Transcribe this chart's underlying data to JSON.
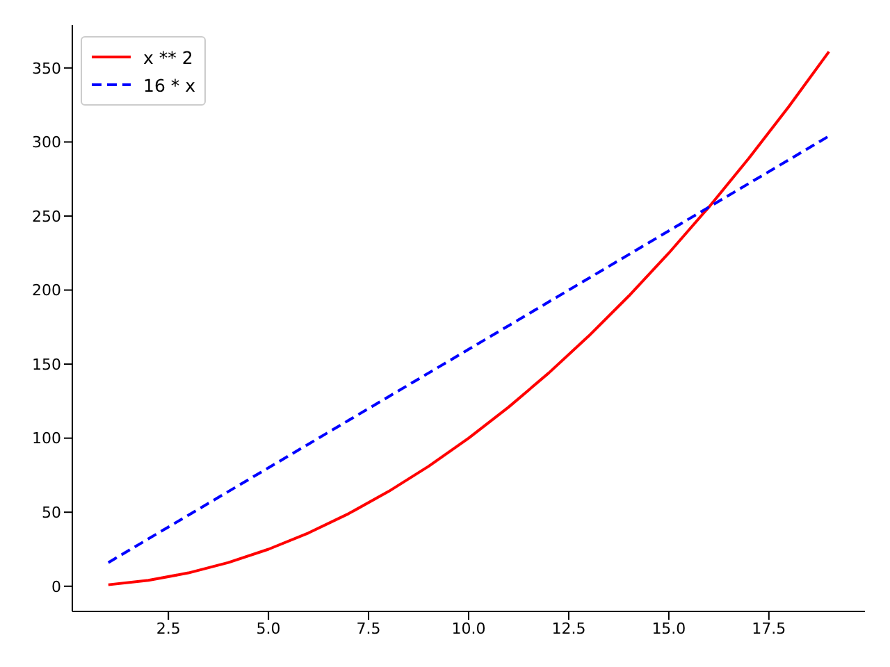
{
  "chart_data": {
    "type": "line",
    "x": [
      1,
      2,
      3,
      4,
      5,
      6,
      7,
      8,
      9,
      10,
      11,
      12,
      13,
      14,
      15,
      16,
      17,
      18,
      19
    ],
    "series": [
      {
        "name": "x ** 2",
        "color": "#ff0000",
        "line_style": "solid",
        "values": [
          1,
          4,
          9,
          16,
          25,
          36,
          49,
          64,
          81,
          100,
          121,
          144,
          169,
          196,
          225,
          256,
          289,
          324,
          361
        ]
      },
      {
        "name": "16 * x",
        "color": "#0000ff",
        "line_style": "dashed",
        "values": [
          16,
          32,
          48,
          64,
          80,
          96,
          112,
          128,
          144,
          160,
          176,
          192,
          208,
          224,
          240,
          256,
          272,
          288,
          304
        ]
      }
    ],
    "xlim": [
      0.1,
      19.9
    ],
    "xticks": [
      {
        "value": 2.5,
        "label": "2.5"
      },
      {
        "value": 5,
        "label": "5.0"
      },
      {
        "value": 7.5,
        "label": "7.5"
      },
      {
        "value": 10,
        "label": "10.0"
      },
      {
        "value": 12.5,
        "label": "12.5"
      },
      {
        "value": 15,
        "label": "15.0"
      },
      {
        "value": 17.5,
        "label": "17.5"
      }
    ],
    "ylim": [
      -17,
      379
    ],
    "yticks": [
      0,
      50,
      100,
      150,
      200,
      250,
      300,
      350
    ],
    "legend": "top left"
  }
}
